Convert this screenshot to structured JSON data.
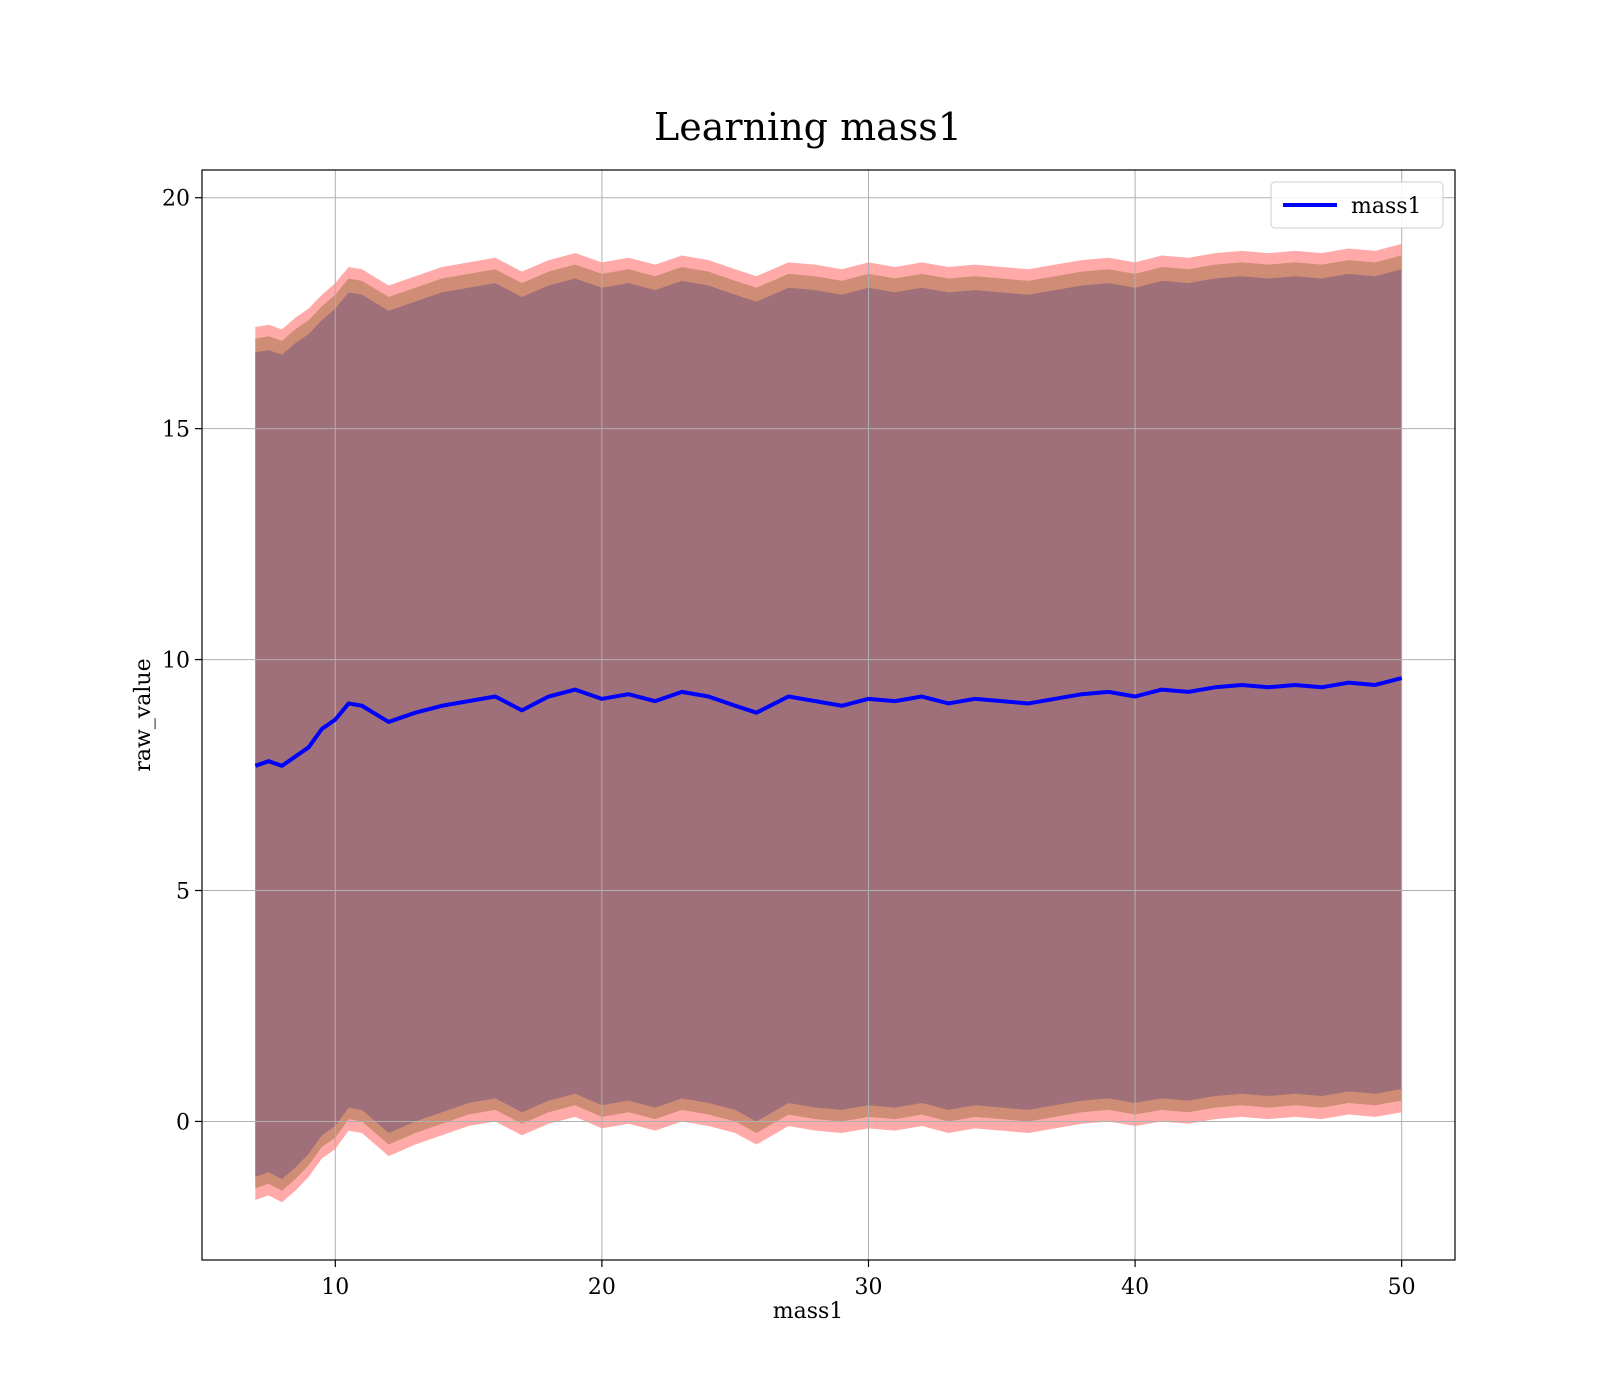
{
  "chart_data": {
    "type": "area",
    "title": "Learning mass1",
    "xlabel": "mass1",
    "ylabel": "raw_value",
    "xlim": [
      5,
      52
    ],
    "ylim": [
      -3,
      20.6
    ],
    "xticks": [
      10,
      20,
      30,
      40,
      50
    ],
    "yticks": [
      0,
      5,
      10,
      15,
      20
    ],
    "grid": true,
    "legend": {
      "placement": "top-right",
      "entries": [
        "mass1"
      ]
    },
    "colors": {
      "line": "#0000ff",
      "band_outer": "#ff9a9a",
      "band_mid": "#c98a6e",
      "band_inner": "#a0707a",
      "grid": "#b0b0b0"
    },
    "series": [
      {
        "name": "mass1",
        "x": [
          7.0,
          7.5,
          8.0,
          8.5,
          9.0,
          9.5,
          10.0,
          10.5,
          11.0,
          12.0,
          13.0,
          14.0,
          15.0,
          16.0,
          17.0,
          18.0,
          19.0,
          20.0,
          21.0,
          22.0,
          23.0,
          24.0,
          25.0,
          25.8,
          27.0,
          28.0,
          29.0,
          30.0,
          31.0,
          32.0,
          33.0,
          34.0,
          35.0,
          36.0,
          37.0,
          38.0,
          39.0,
          40.0,
          41.0,
          42.0,
          43.0,
          44.0,
          45.0,
          46.0,
          47.0,
          48.0,
          49.0,
          50.0
        ],
        "y": [
          7.7,
          7.8,
          7.7,
          7.9,
          8.1,
          8.5,
          8.7,
          9.05,
          9.0,
          8.65,
          8.85,
          9.0,
          9.1,
          9.2,
          8.9,
          9.2,
          9.35,
          9.15,
          9.25,
          9.1,
          9.3,
          9.2,
          9.0,
          8.85,
          9.2,
          9.1,
          9.0,
          9.15,
          9.1,
          9.2,
          9.05,
          9.15,
          9.1,
          9.05,
          9.15,
          9.25,
          9.3,
          9.2,
          9.35,
          9.3,
          9.4,
          9.45,
          9.4,
          9.45,
          9.4,
          9.5,
          9.45,
          9.6
        ],
        "outer_lower": [
          -1.7,
          -1.6,
          -1.75,
          -1.5,
          -1.2,
          -0.8,
          -0.6,
          -0.2,
          -0.25,
          -0.75,
          -0.5,
          -0.3,
          -0.1,
          0.0,
          -0.3,
          -0.05,
          0.1,
          -0.15,
          -0.05,
          -0.2,
          0.0,
          -0.1,
          -0.25,
          -0.5,
          -0.1,
          -0.2,
          -0.25,
          -0.15,
          -0.2,
          -0.1,
          -0.25,
          -0.15,
          -0.2,
          -0.25,
          -0.15,
          -0.05,
          0.0,
          -0.1,
          0.0,
          -0.05,
          0.05,
          0.1,
          0.05,
          0.1,
          0.05,
          0.15,
          0.1,
          0.2
        ],
        "outer_upper": [
          17.2,
          17.25,
          17.15,
          17.4,
          17.6,
          17.9,
          18.15,
          18.5,
          18.45,
          18.1,
          18.3,
          18.5,
          18.6,
          18.7,
          18.4,
          18.65,
          18.8,
          18.6,
          18.7,
          18.55,
          18.75,
          18.65,
          18.45,
          18.3,
          18.6,
          18.55,
          18.45,
          18.6,
          18.5,
          18.6,
          18.5,
          18.55,
          18.5,
          18.45,
          18.55,
          18.65,
          18.7,
          18.6,
          18.75,
          18.7,
          18.8,
          18.85,
          18.8,
          18.85,
          18.8,
          18.9,
          18.85,
          19.0
        ],
        "mid_lower": [
          -1.45,
          -1.35,
          -1.5,
          -1.25,
          -0.95,
          -0.55,
          -0.35,
          0.05,
          0.0,
          -0.5,
          -0.25,
          -0.05,
          0.15,
          0.25,
          -0.05,
          0.2,
          0.35,
          0.1,
          0.2,
          0.05,
          0.25,
          0.15,
          0.0,
          -0.25,
          0.15,
          0.05,
          0.0,
          0.1,
          0.05,
          0.15,
          0.0,
          0.1,
          0.05,
          0.0,
          0.1,
          0.2,
          0.25,
          0.15,
          0.25,
          0.2,
          0.3,
          0.35,
          0.3,
          0.35,
          0.3,
          0.4,
          0.35,
          0.45
        ],
        "mid_upper": [
          16.95,
          17.0,
          16.9,
          17.15,
          17.35,
          17.65,
          17.9,
          18.25,
          18.2,
          17.85,
          18.05,
          18.25,
          18.35,
          18.45,
          18.15,
          18.4,
          18.55,
          18.35,
          18.45,
          18.3,
          18.5,
          18.4,
          18.2,
          18.05,
          18.35,
          18.3,
          18.2,
          18.35,
          18.25,
          18.35,
          18.25,
          18.3,
          18.25,
          18.2,
          18.3,
          18.4,
          18.45,
          18.35,
          18.5,
          18.45,
          18.55,
          18.6,
          18.55,
          18.6,
          18.55,
          18.65,
          18.6,
          18.75
        ],
        "inner_lower": [
          -1.2,
          -1.1,
          -1.25,
          -1.0,
          -0.7,
          -0.3,
          -0.1,
          0.3,
          0.25,
          -0.25,
          0.0,
          0.2,
          0.4,
          0.5,
          0.2,
          0.45,
          0.6,
          0.35,
          0.45,
          0.3,
          0.5,
          0.4,
          0.25,
          0.0,
          0.4,
          0.3,
          0.25,
          0.35,
          0.3,
          0.4,
          0.25,
          0.35,
          0.3,
          0.25,
          0.35,
          0.45,
          0.5,
          0.4,
          0.5,
          0.45,
          0.55,
          0.6,
          0.55,
          0.6,
          0.55,
          0.65,
          0.6,
          0.7
        ],
        "inner_upper": [
          16.65,
          16.7,
          16.6,
          16.85,
          17.05,
          17.35,
          17.6,
          17.95,
          17.9,
          17.55,
          17.75,
          17.95,
          18.05,
          18.15,
          17.85,
          18.1,
          18.25,
          18.05,
          18.15,
          18.0,
          18.2,
          18.1,
          17.9,
          17.75,
          18.05,
          18.0,
          17.9,
          18.05,
          17.95,
          18.05,
          17.95,
          18.0,
          17.95,
          17.9,
          18.0,
          18.1,
          18.15,
          18.05,
          18.2,
          18.15,
          18.25,
          18.3,
          18.25,
          18.3,
          18.25,
          18.35,
          18.3,
          18.45
        ]
      }
    ]
  }
}
